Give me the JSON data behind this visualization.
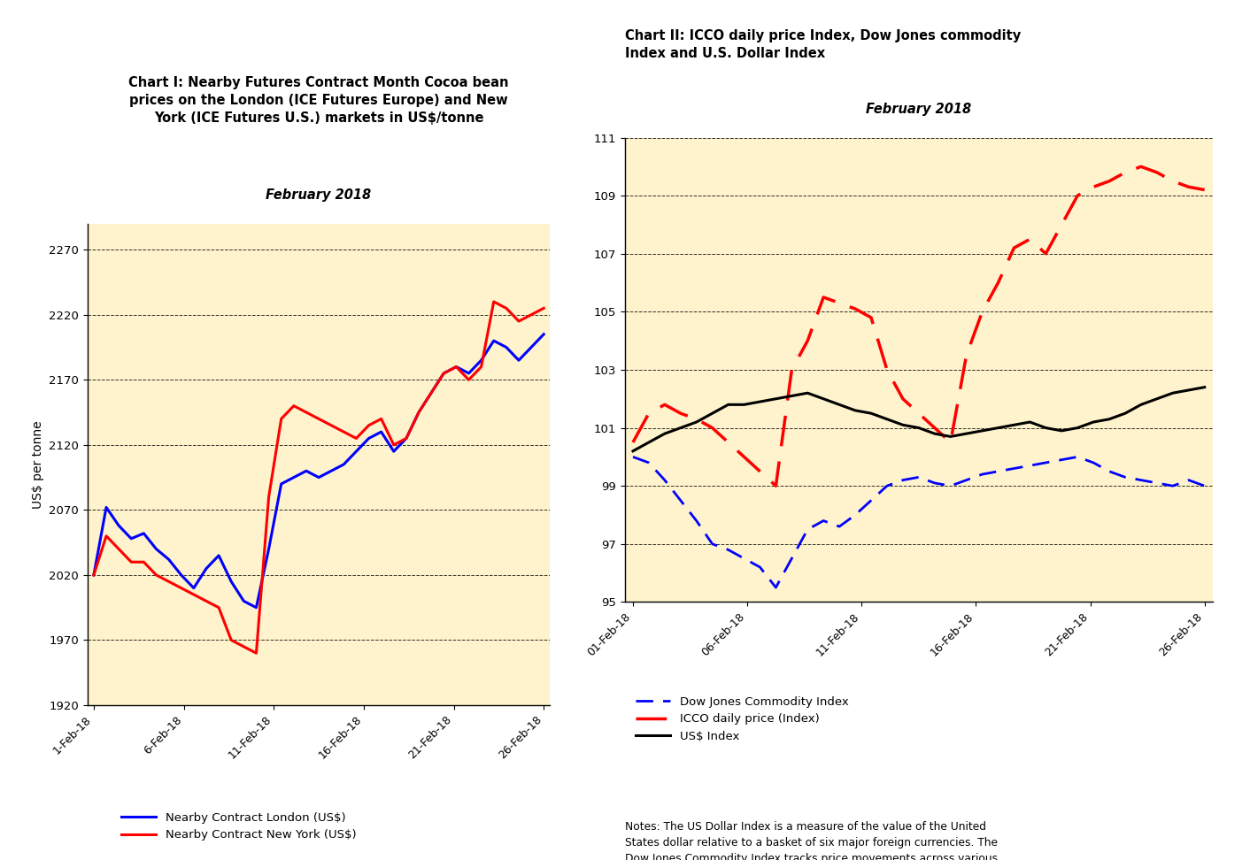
{
  "chart1": {
    "title_line1": "Chart I: Nearby Futures Contract Month Cocoa bean",
    "title_line2": "prices on the London (ICE Futures Europe) and New",
    "title_line3": "York (ICE Futures U.S.) markets in US$/tonne",
    "title_italic": "February 2018",
    "ylabel": "US$ per tonne",
    "ylim": [
      1920,
      2290
    ],
    "yticks": [
      1920,
      1970,
      2020,
      2070,
      2120,
      2170,
      2220,
      2270
    ],
    "xlabels": [
      "1-Feb-18",
      "6-Feb-18",
      "11-Feb-18",
      "16-Feb-18",
      "21-Feb-18",
      "26-Feb-18"
    ],
    "london": [
      2020,
      2072,
      2058,
      2048,
      2052,
      2040,
      2032,
      2020,
      2010,
      2025,
      2035,
      2015,
      2000,
      1995,
      2040,
      2090,
      2095,
      2100,
      2095,
      2100,
      2105,
      2115,
      2125,
      2130,
      2115,
      2125,
      2145,
      2160,
      2175,
      2180,
      2175,
      2185,
      2200,
      2195,
      2185,
      2195,
      2205
    ],
    "newyork": [
      2020,
      2050,
      2040,
      2030,
      2030,
      2020,
      2015,
      2010,
      2005,
      2000,
      1995,
      1970,
      1965,
      1960,
      2080,
      2140,
      2150,
      2145,
      2140,
      2135,
      2130,
      2125,
      2135,
      2140,
      2120,
      2125,
      2145,
      2160,
      2175,
      2180,
      2170,
      2180,
      2230,
      2225,
      2215,
      2220,
      2225
    ],
    "legend_london": "Nearby Contract London (US$)",
    "legend_newyork": "Nearby Contract New York (US$)",
    "bg_color": "#FEF3CD"
  },
  "chart2": {
    "title_bold_prefix": "Chart II:",
    "title_bold_rest": " ICCO daily price Index, Dow Jones commodity",
    "title_bold_line2": "Index and U.S. Dollar Index",
    "title_italic": "February 2018",
    "ylim": [
      95,
      111
    ],
    "yticks": [
      95,
      97,
      99,
      101,
      103,
      105,
      107,
      109,
      111
    ],
    "xlabels": [
      "01-Feb-18",
      "06-Feb-18",
      "11-Feb-18",
      "16-Feb-18",
      "21-Feb-18",
      "26-Feb-18"
    ],
    "dow_jones": [
      100.0,
      99.8,
      99.2,
      98.5,
      97.8,
      97.0,
      96.8,
      96.5,
      96.2,
      95.5,
      96.5,
      97.5,
      97.8,
      97.6,
      98.0,
      98.5,
      99.0,
      99.2,
      99.3,
      99.1,
      99.0,
      99.2,
      99.4,
      99.5,
      99.6,
      99.7,
      99.8,
      99.9,
      100.0,
      99.8,
      99.5,
      99.3,
      99.2,
      99.1,
      99.0,
      99.2,
      99.0
    ],
    "icco": [
      100.5,
      101.5,
      101.8,
      101.5,
      101.3,
      101.0,
      100.5,
      100.0,
      99.5,
      99.0,
      103.0,
      104.0,
      105.5,
      105.3,
      105.1,
      104.8,
      103.0,
      102.0,
      101.5,
      101.0,
      100.5,
      103.5,
      105.0,
      106.0,
      107.2,
      107.5,
      107.0,
      108.0,
      109.0,
      109.3,
      109.5,
      109.8,
      110.0,
      109.8,
      109.5,
      109.3,
      109.2
    ],
    "usd": [
      100.2,
      100.5,
      100.8,
      101.0,
      101.2,
      101.5,
      101.8,
      101.8,
      101.9,
      102.0,
      102.1,
      102.2,
      102.0,
      101.8,
      101.6,
      101.5,
      101.3,
      101.1,
      101.0,
      100.8,
      100.7,
      100.8,
      100.9,
      101.0,
      101.1,
      101.2,
      101.0,
      100.9,
      101.0,
      101.2,
      101.3,
      101.5,
      101.8,
      102.0,
      102.2,
      102.3,
      102.4
    ],
    "legend_dow": "Dow Jones Commodity Index",
    "legend_icco": "ICCO daily price (Index)",
    "legend_usd": "US$ Index",
    "bg_color": "#FEF3CD",
    "notes_bold": "Notes:",
    "notes_italic_start": " The ",
    "notes_italic1": "US Dollar Index",
    "notes_rest1": " is a measure of the value of the United\nStates dollar relative to a basket of six major foreign currencies. The\n",
    "notes_italic2": "Dow Jones Commodity Index",
    "notes_rest2": " tracks price movements across various\ncommodities, including energy, precious metals, industrial metals,\ngrains, livestock, softs and agriculture."
  }
}
